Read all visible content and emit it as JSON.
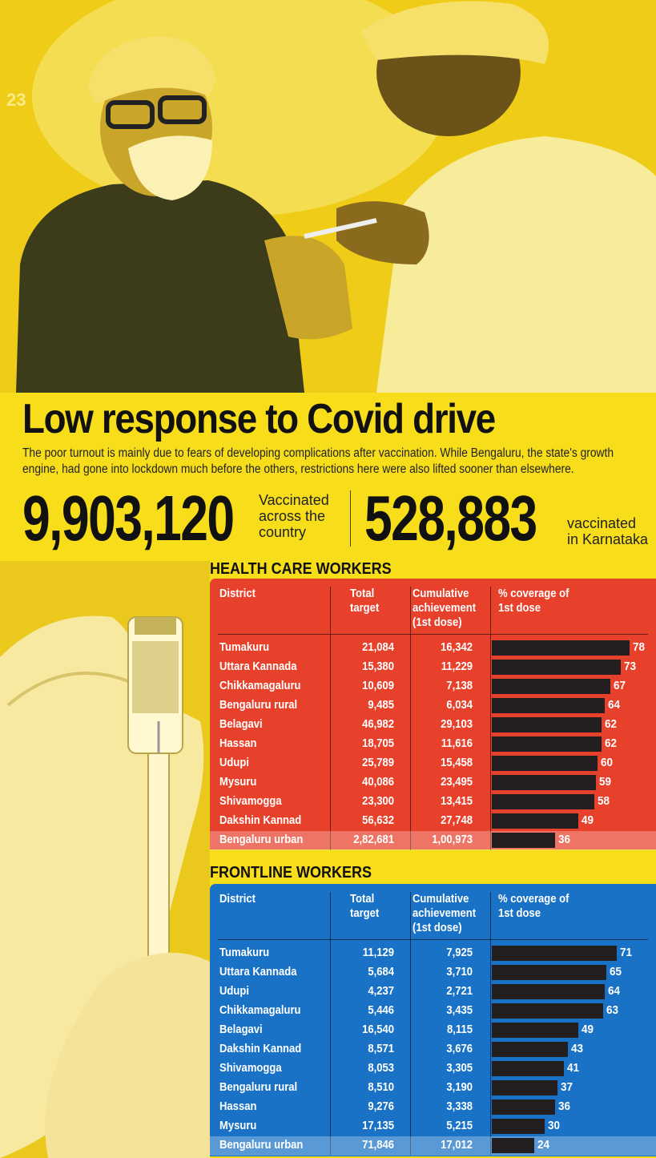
{
  "page_number": "23",
  "headline": "Low response to Covid drive",
  "subtext": "The poor turnout is mainly due to fears of developing complications after vaccination. While Bengaluru, the state's growth engine, had gone into lockdown much before the others, restrictions here were also lifted sooner than elsewhere.",
  "stat_country": {
    "value": "9,903,120",
    "caption_lines": [
      "Vaccinated",
      "across the",
      "country"
    ]
  },
  "stat_state": {
    "value": "528,883",
    "caption_lines": [
      "vaccinated",
      "in Karnataka"
    ]
  },
  "photo_top": {
    "description": "health worker being vaccinated",
    "tint": "#f3d21a"
  },
  "photo_left": {
    "description": "vaccine vial and syringe",
    "tint": "#f3d21a"
  },
  "colors": {
    "background": "#f7dd1a",
    "health_panel": "#e8412b",
    "frontline_panel": "#1a72c6",
    "bar": "#231f20"
  },
  "chart_data": [
    {
      "type": "table",
      "title": "HEALTH CARE WORKERS",
      "columns": [
        "District",
        "Total target",
        "Cumulative achievement (1st dose)",
        "% coverage of 1st dose"
      ],
      "column_header_lines": [
        [
          "District"
        ],
        [
          "Total",
          "target"
        ],
        [
          "Cumulative",
          "achievement",
          "(1st dose)"
        ],
        [
          "% coverage of",
          "1st dose"
        ]
      ],
      "rows": [
        {
          "district": "Tumakuru",
          "total_target": "21,084",
          "cumulative": "16,342",
          "coverage": 78
        },
        {
          "district": "Uttara Kannada",
          "total_target": "15,380",
          "cumulative": "11,229",
          "coverage": 73
        },
        {
          "district": "Chikkamagaluru",
          "total_target": "10,609",
          "cumulative": "7,138",
          "coverage": 67
        },
        {
          "district": "Bengaluru rural",
          "total_target": "9,485",
          "cumulative": "6,034",
          "coverage": 64
        },
        {
          "district": "Belagavi",
          "total_target": "46,982",
          "cumulative": "29,103",
          "coverage": 62
        },
        {
          "district": "Hassan",
          "total_target": "18,705",
          "cumulative": "11,616",
          "coverage": 62
        },
        {
          "district": "Udupi",
          "total_target": "25,789",
          "cumulative": "15,458",
          "coverage": 60
        },
        {
          "district": "Mysuru",
          "total_target": "40,086",
          "cumulative": "23,495",
          "coverage": 59
        },
        {
          "district": "Shivamogga",
          "total_target": "23,300",
          "cumulative": "13,415",
          "coverage": 58
        },
        {
          "district": "Dakshin Kannad",
          "total_target": "56,632",
          "cumulative": "27,748",
          "coverage": 49
        },
        {
          "district": "Bengaluru urban",
          "total_target": "2,82,681",
          "cumulative": "1,00,973",
          "coverage": 36,
          "highlighted": true
        }
      ]
    },
    {
      "type": "table",
      "title": "FRONTLINE WORKERS",
      "columns": [
        "District",
        "Total target",
        "Cumulative achievement (1st dose)",
        "% coverage of 1st dose"
      ],
      "column_header_lines": [
        [
          "District"
        ],
        [
          "Total",
          "target"
        ],
        [
          "Cumulative",
          "achievement",
          "(1st dose)"
        ],
        [
          "% coverage of",
          "1st dose"
        ]
      ],
      "rows": [
        {
          "district": "Tumakuru",
          "total_target": "11,129",
          "cumulative": "7,925",
          "coverage": 71
        },
        {
          "district": "Uttara Kannada",
          "total_target": "5,684",
          "cumulative": "3,710",
          "coverage": 65
        },
        {
          "district": "Udupi",
          "total_target": "4,237",
          "cumulative": "2,721",
          "coverage": 64
        },
        {
          "district": "Chikkamagaluru",
          "total_target": "5,446",
          "cumulative": "3,435",
          "coverage": 63
        },
        {
          "district": "Belagavi",
          "total_target": "16,540",
          "cumulative": "8,115",
          "coverage": 49
        },
        {
          "district": "Dakshin Kannad",
          "total_target": "8,571",
          "cumulative": "3,676",
          "coverage": 43
        },
        {
          "district": "Shivamogga",
          "total_target": "8,053",
          "cumulative": "3,305",
          "coverage": 41
        },
        {
          "district": "Bengaluru rural",
          "total_target": "8,510",
          "cumulative": "3,190",
          "coverage": 37
        },
        {
          "district": "Hassan",
          "total_target": "9,276",
          "cumulative": "3,338",
          "coverage": 36
        },
        {
          "district": "Mysuru",
          "total_target": "17,135",
          "cumulative": "5,215",
          "coverage": 30
        },
        {
          "district": "Bengaluru urban",
          "total_target": "71,846",
          "cumulative": "17,012",
          "coverage": 24,
          "highlighted": true
        }
      ]
    }
  ]
}
